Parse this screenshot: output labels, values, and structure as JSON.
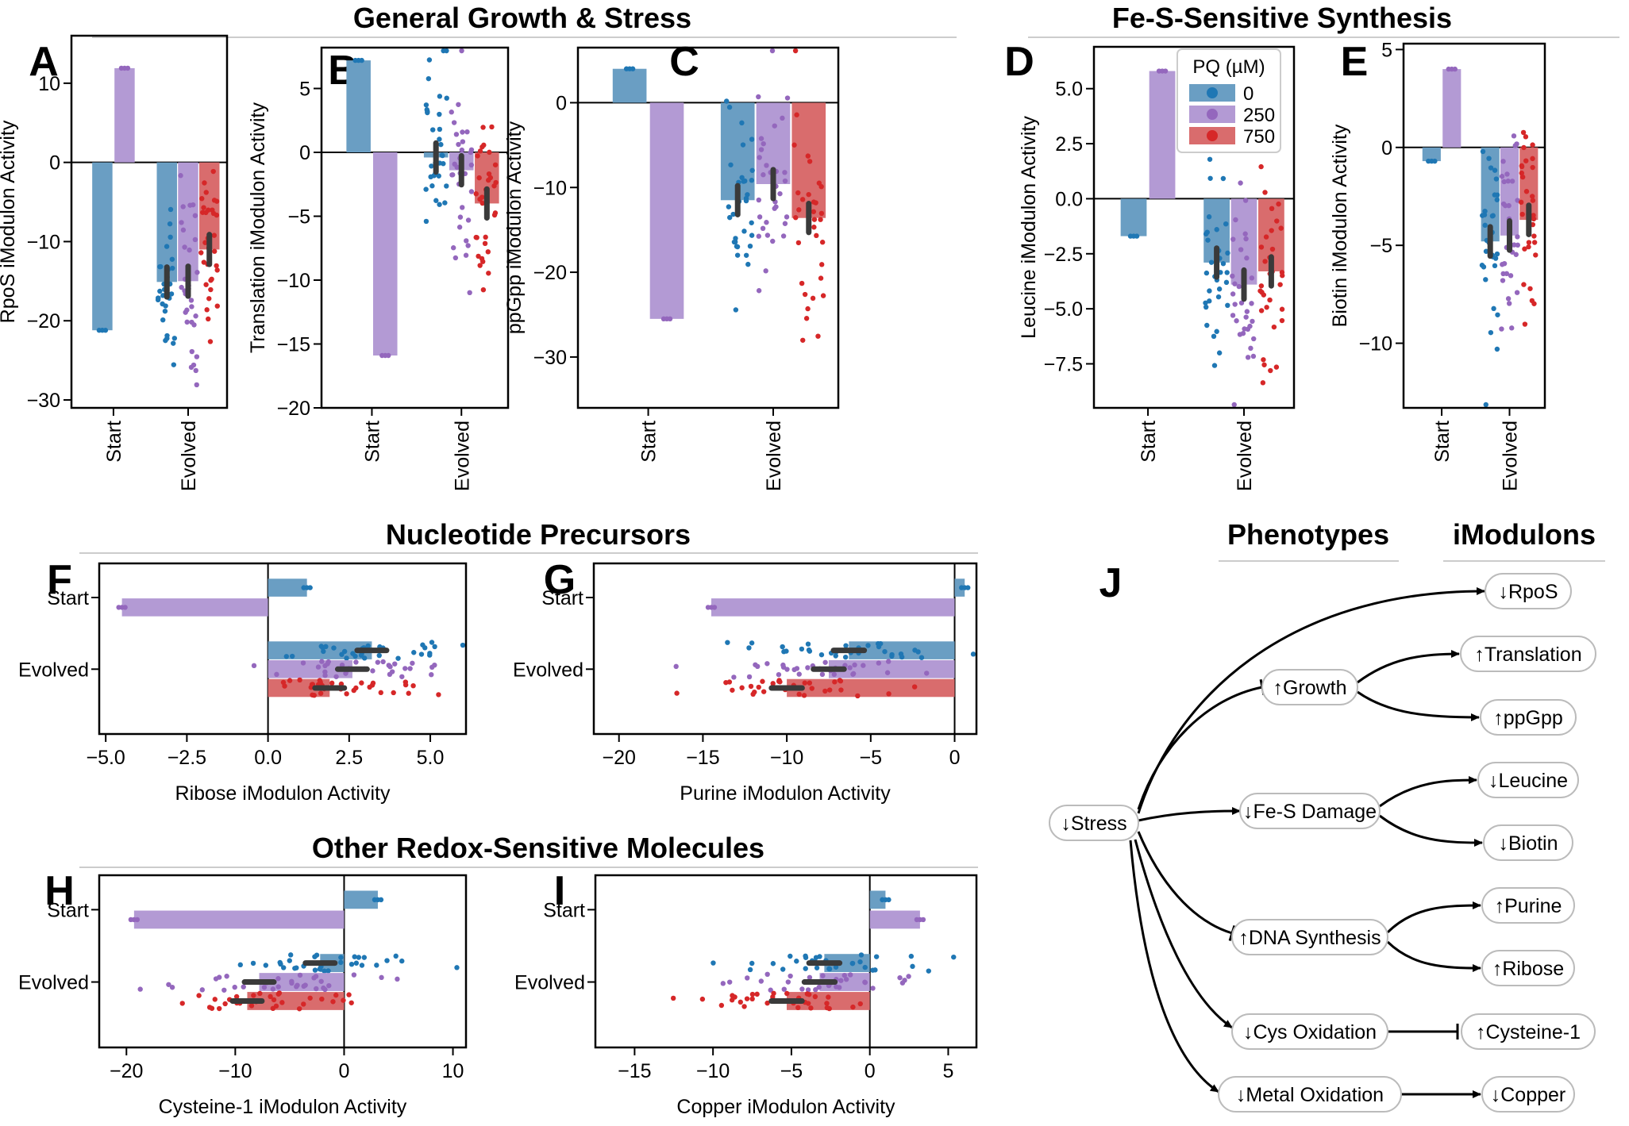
{
  "sections": {
    "top_left": "General Growth & Stress",
    "top_right": "Fe-S-Sensitive Synthesis",
    "middle": "Nucleotide Precursors",
    "bottom": "Other Redox-Sensitive Molecules",
    "phenotypes": "Phenotypes",
    "imodulons": "iModulons"
  },
  "legend": {
    "title": "PQ (µM)",
    "entries": [
      "0",
      "250",
      "750"
    ]
  },
  "colors": {
    "pq_0": "#1f77b4",
    "pq_250": "#9467bd",
    "pq_750": "#d62728",
    "bar_0": "#6a9ec3",
    "bar_250": "#b39ad4",
    "bar_750": "#d96c6d"
  },
  "chart_data": [
    {
      "panel": "A",
      "type": "bar",
      "orientation": "vertical",
      "categories": [
        "Start",
        "Evolved"
      ],
      "ylabel": "RpoS iModulon Activity",
      "ylim": [
        -31,
        16
      ],
      "yticks": [
        10,
        0,
        -10,
        -20,
        -30
      ],
      "series": [
        {
          "name": "0",
          "values": [
            -21.2,
            -15.1
          ]
        },
        {
          "name": "250",
          "values": [
            11.9,
            -15.0
          ]
        },
        {
          "name": "750",
          "values": [
            null,
            -11.0
          ]
        }
      ]
    },
    {
      "panel": "B",
      "type": "bar",
      "orientation": "vertical",
      "categories": [
        "Start",
        "Evolved"
      ],
      "ylabel": "Translation iModulon Activity",
      "ylim": [
        -20,
        8.2
      ],
      "yticks": [
        5,
        0,
        -5,
        -10,
        -15,
        -20
      ],
      "series": [
        {
          "name": "0",
          "values": [
            7.2,
            -0.4
          ]
        },
        {
          "name": "250",
          "values": [
            -15.9,
            -1.4
          ]
        },
        {
          "name": "750",
          "values": [
            null,
            -4.0
          ]
        }
      ]
    },
    {
      "panel": "C",
      "type": "bar",
      "orientation": "vertical",
      "categories": [
        "Start",
        "Evolved"
      ],
      "ylabel": "ppGpp iModulon Activity",
      "ylim": [
        -36,
        6.5
      ],
      "yticks": [
        0,
        -10,
        -20,
        -30
      ],
      "series": [
        {
          "name": "0",
          "values": [
            4.0,
            -11.5
          ]
        },
        {
          "name": "250",
          "values": [
            -25.5,
            -9.6
          ]
        },
        {
          "name": "750",
          "values": [
            null,
            -13.6
          ]
        }
      ]
    },
    {
      "panel": "D",
      "type": "bar",
      "orientation": "vertical",
      "categories": [
        "Start",
        "Evolved"
      ],
      "ylabel": "Leucine iModulon Activity",
      "ylim": [
        -9.5,
        6.9
      ],
      "yticks": [
        5.0,
        2.5,
        0.0,
        -2.5,
        -5.0,
        -7.5
      ],
      "ytick_labels": [
        "5.0",
        "2.5",
        "0.0",
        "−2.5",
        "−5.0",
        "−7.5"
      ],
      "series": [
        {
          "name": "0",
          "values": [
            -1.7,
            -2.9
          ]
        },
        {
          "name": "250",
          "values": [
            5.8,
            -3.9
          ]
        },
        {
          "name": "750",
          "values": [
            null,
            -3.3
          ]
        }
      ]
    },
    {
      "panel": "E",
      "type": "bar",
      "orientation": "vertical",
      "categories": [
        "Start",
        "Evolved"
      ],
      "ylabel": "Biotin iModulon Activity",
      "ylim": [
        -13.3,
        5.3
      ],
      "yticks": [
        5,
        0,
        -5,
        -10
      ],
      "series": [
        {
          "name": "0",
          "values": [
            -0.7,
            -4.8
          ]
        },
        {
          "name": "250",
          "values": [
            4.0,
            -4.5
          ]
        },
        {
          "name": "750",
          "values": [
            null,
            -3.7
          ]
        }
      ]
    },
    {
      "panel": "F",
      "type": "bar",
      "orientation": "horizontal",
      "categories": [
        "Start",
        "Evolved"
      ],
      "xlabel": "Ribose iModulon Activity",
      "xlim": [
        -5.2,
        6.1
      ],
      "xticks": [
        -5.0,
        -2.5,
        0.0,
        2.5,
        5.0
      ],
      "xtick_labels": [
        "−5.0",
        "−2.5",
        "0.0",
        "2.5",
        "5.0"
      ],
      "series": [
        {
          "name": "0",
          "values": [
            1.2,
            3.2
          ]
        },
        {
          "name": "250",
          "values": [
            -4.5,
            2.6
          ]
        },
        {
          "name": "750",
          "values": [
            null,
            1.9
          ]
        }
      ]
    },
    {
      "panel": "G",
      "type": "bar",
      "orientation": "horizontal",
      "categories": [
        "Start",
        "Evolved"
      ],
      "xlabel": "Purine iModulon Activity",
      "xlim": [
        -21.5,
        1.3
      ],
      "xticks": [
        -20,
        -15,
        -10,
        -5,
        0
      ],
      "series": [
        {
          "name": "0",
          "values": [
            0.6,
            -6.3
          ]
        },
        {
          "name": "250",
          "values": [
            -14.5,
            -7.5
          ]
        },
        {
          "name": "750",
          "values": [
            null,
            -10.0
          ]
        }
      ]
    },
    {
      "panel": "H",
      "type": "bar",
      "orientation": "horizontal",
      "categories": [
        "Start",
        "Evolved"
      ],
      "xlabel": "Cysteine-1 iModulon Activity",
      "xlim": [
        -22.5,
        11.2
      ],
      "xticks": [
        -20,
        -10,
        0,
        10
      ],
      "series": [
        {
          "name": "0",
          "values": [
            3.1,
            -2.2
          ]
        },
        {
          "name": "250",
          "values": [
            -19.3,
            -7.8
          ]
        },
        {
          "name": "750",
          "values": [
            null,
            -8.9
          ]
        }
      ]
    },
    {
      "panel": "I",
      "type": "bar",
      "orientation": "horizontal",
      "categories": [
        "Start",
        "Evolved"
      ],
      "xlabel": "Copper iModulon Activity",
      "xlim": [
        -17.5,
        6.8
      ],
      "xticks": [
        -15,
        -10,
        -5,
        0,
        5
      ],
      "series": [
        {
          "name": "0",
          "values": [
            1.0,
            -2.9
          ]
        },
        {
          "name": "250",
          "values": [
            3.2,
            -3.2
          ]
        },
        {
          "name": "750",
          "values": [
            null,
            -5.3
          ]
        }
      ]
    }
  ],
  "diagram": {
    "panel": "J",
    "phenotype_nodes": [
      {
        "id": "stress",
        "label": "↓Stress"
      },
      {
        "id": "growth",
        "label": "↑Growth"
      },
      {
        "id": "fes",
        "label": "↓Fe-S Damage"
      },
      {
        "id": "dna",
        "label": "↑DNA Synthesis"
      },
      {
        "id": "cys",
        "label": "↓Cys Oxidation"
      },
      {
        "id": "metal",
        "label": "↓Metal Oxidation"
      }
    ],
    "imodulon_nodes": [
      {
        "id": "rpos",
        "label": "↓RpoS"
      },
      {
        "id": "translation",
        "label": "↑Translation"
      },
      {
        "id": "ppgpp",
        "label": "↑ppGpp"
      },
      {
        "id": "leucine",
        "label": "↓Leucine"
      },
      {
        "id": "biotin",
        "label": "↓Biotin"
      },
      {
        "id": "purine",
        "label": "↑Purine"
      },
      {
        "id": "ribose",
        "label": "↑Ribose"
      },
      {
        "id": "cysteine",
        "label": "↑Cysteine-1"
      },
      {
        "id": "copper",
        "label": "↓Copper"
      }
    ],
    "edges": [
      {
        "from": "stress",
        "to": "rpos",
        "type": "activate"
      },
      {
        "from": "stress",
        "to": "growth",
        "type": "inhibit"
      },
      {
        "from": "stress",
        "to": "fes",
        "type": "activate"
      },
      {
        "from": "stress",
        "to": "dna",
        "type": "inhibit"
      },
      {
        "from": "stress",
        "to": "cys",
        "type": "activate"
      },
      {
        "from": "stress",
        "to": "metal",
        "type": "activate"
      },
      {
        "from": "growth",
        "to": "translation",
        "type": "activate"
      },
      {
        "from": "growth",
        "to": "ppgpp",
        "type": "activate"
      },
      {
        "from": "fes",
        "to": "leucine",
        "type": "activate"
      },
      {
        "from": "fes",
        "to": "biotin",
        "type": "activate"
      },
      {
        "from": "dna",
        "to": "purine",
        "type": "activate"
      },
      {
        "from": "dna",
        "to": "ribose",
        "type": "activate"
      },
      {
        "from": "cys",
        "to": "cysteine",
        "type": "inhibit"
      },
      {
        "from": "metal",
        "to": "copper",
        "type": "activate"
      }
    ]
  }
}
